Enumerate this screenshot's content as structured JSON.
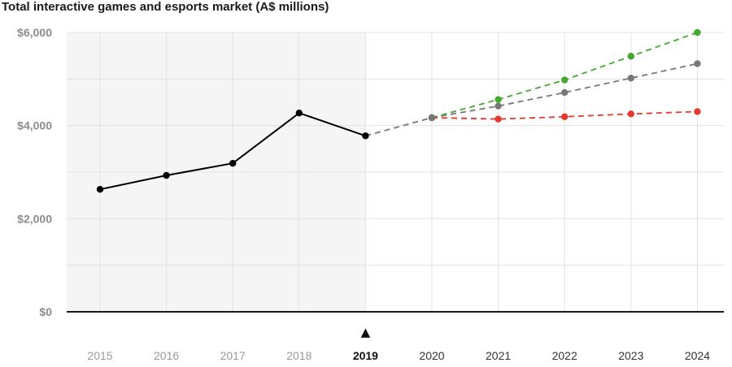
{
  "chart_data": {
    "type": "line",
    "title": "Total interactive games and esports market (A$ millions)",
    "xlabel": "",
    "ylabel": "",
    "x": [
      "2015",
      "2016",
      "2017",
      "2018",
      "2019",
      "2020",
      "2021",
      "2022",
      "2023",
      "2024"
    ],
    "y_ticks": [
      "$0",
      "$2,000",
      "$4,000",
      "$6,000"
    ],
    "ylim": [
      0,
      6000
    ],
    "grid": true,
    "current_year": "2019",
    "current_marker": "▲",
    "historical_shading": "2015–2019",
    "series": [
      {
        "role": "actual",
        "color": "#000000",
        "dashed": false,
        "x": [
          "2015",
          "2016",
          "2017",
          "2018",
          "2019"
        ],
        "values": [
          2630,
          2930,
          3190,
          4270,
          3780
        ]
      },
      {
        "role": "projection-mid",
        "color": "#777777",
        "dashed": true,
        "x": [
          "2019",
          "2020",
          "2021",
          "2022",
          "2023",
          "2024"
        ],
        "values": [
          3780,
          4170,
          4420,
          4710,
          5020,
          5330
        ]
      },
      {
        "role": "projection-high",
        "color": "#44a832",
        "dashed": true,
        "x": [
          "2020",
          "2021",
          "2022",
          "2023",
          "2024"
        ],
        "values": [
          4170,
          4560,
          4980,
          5490,
          6000
        ]
      },
      {
        "role": "projection-low",
        "color": "#e23b2e",
        "dashed": true,
        "x": [
          "2020",
          "2021",
          "2022",
          "2023",
          "2024"
        ],
        "values": [
          4170,
          4140,
          4190,
          4250,
          4300
        ]
      }
    ]
  }
}
